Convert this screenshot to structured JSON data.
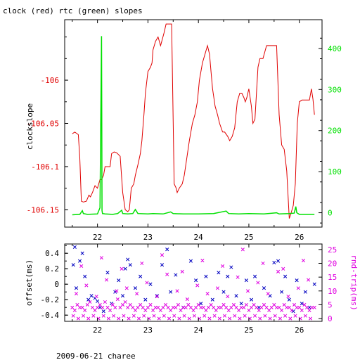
{
  "title": "clock (red) rtc (green) slopes",
  "footer": "2009-06-21 charee",
  "colors": {
    "frame": "#000000",
    "clock": "#e00000",
    "rtc": "#00e000",
    "offset": "#0000c0",
    "rtt": "#e000e0"
  },
  "chart_data": [
    {
      "type": "line",
      "title": "clock (red) rtc (green) slopes",
      "ylabel": "clockslope",
      "xlim": [
        21.35,
        26.45
      ],
      "ylim": [
        -106.17,
        -105.93
      ],
      "y2lim": [
        -35,
        470
      ],
      "x_ticks": [
        "22",
        "23",
        "24",
        "25",
        "26"
      ],
      "y_ticks": [
        "-106",
        "-106.05",
        "-106.1",
        "-106.15"
      ],
      "y2_ticks": [
        "0",
        "100",
        "200",
        "300",
        "400"
      ],
      "series": [
        {
          "axis": "left",
          "x": [
            21.5,
            21.55,
            21.62,
            21.65,
            21.68,
            21.72,
            21.78,
            21.83,
            21.86,
            21.9,
            21.95,
            22.0,
            22.05,
            22.08,
            22.12,
            22.15,
            22.2,
            22.25,
            22.28,
            22.33,
            22.38,
            22.45,
            22.5,
            22.55,
            22.6,
            22.63,
            22.67,
            22.72,
            22.75,
            22.8,
            22.85,
            22.88,
            22.92,
            22.95,
            23.0,
            23.05,
            23.08,
            23.1,
            23.15,
            23.2,
            23.25,
            23.32,
            23.36,
            23.42,
            23.47,
            23.52,
            23.56,
            23.58,
            23.62,
            23.68,
            23.72,
            23.77,
            23.82,
            23.88,
            23.93,
            23.98,
            24.02,
            24.08,
            24.13,
            24.18,
            24.22,
            24.25,
            24.28,
            24.33,
            24.38,
            24.42,
            24.48,
            24.52,
            24.58,
            24.62,
            24.67,
            24.72,
            24.77,
            24.82,
            24.86,
            24.9,
            24.93,
            24.96,
            25.0,
            25.05,
            25.08,
            25.12,
            25.18,
            25.22,
            25.28,
            25.35,
            25.42,
            25.48,
            25.52,
            25.55,
            25.6,
            25.65,
            25.7,
            25.75,
            25.8,
            25.83,
            25.88,
            25.92,
            25.96,
            26.0,
            26.05,
            26.1,
            26.15,
            26.2,
            26.24,
            26.27,
            26.3
          ],
          "y": [
            -106.062,
            -106.06,
            -106.063,
            -106.09,
            -106.14,
            -106.141,
            -106.14,
            -106.133,
            -106.135,
            -106.13,
            -106.122,
            -106.125,
            -106.115,
            -106.115,
            -106.11,
            -106.1,
            -106.1,
            -106.1,
            -106.085,
            -106.083,
            -106.084,
            -106.088,
            -106.13,
            -106.15,
            -106.152,
            -106.15,
            -106.125,
            -106.12,
            -106.11,
            -106.098,
            -106.085,
            -106.07,
            -106.04,
            -106.015,
            -105.99,
            -105.985,
            -105.98,
            -105.965,
            -105.955,
            -105.95,
            -105.96,
            -105.945,
            -105.935,
            -105.935,
            -105.935,
            -106.12,
            -106.125,
            -106.13,
            -106.125,
            -106.12,
            -106.11,
            -106.09,
            -106.07,
            -106.05,
            -106.04,
            -106.025,
            -106.0,
            -105.98,
            -105.97,
            -105.96,
            -105.97,
            -105.99,
            -106.01,
            -106.03,
            -106.04,
            -106.05,
            -106.06,
            -106.06,
            -106.065,
            -106.07,
            -106.065,
            -106.055,
            -106.025,
            -106.015,
            -106.015,
            -106.02,
            -106.025,
            -106.02,
            -106.01,
            -106.03,
            -106.05,
            -106.045,
            -105.985,
            -105.975,
            -105.975,
            -105.96,
            -105.96,
            -105.96,
            -105.96,
            -105.96,
            -106.04,
            -106.075,
            -106.08,
            -106.105,
            -106.16,
            -106.155,
            -106.145,
            -106.12,
            -106.05,
            -106.025,
            -106.023,
            -106.023,
            -106.023,
            -106.023,
            -106.01,
            -106.022,
            -106.04
          ],
          "color": "#e00000"
        },
        {
          "axis": "right",
          "x": [
            21.5,
            21.65,
            21.7,
            21.72,
            21.8,
            22.0,
            22.05,
            22.08,
            22.09,
            22.1,
            22.15,
            22.3,
            22.4,
            22.48,
            22.5,
            22.6,
            22.7,
            22.75,
            22.8,
            23.0,
            23.1,
            23.3,
            23.45,
            23.5,
            23.7,
            24.0,
            24.3,
            24.55,
            24.6,
            24.8,
            25.0,
            25.3,
            25.55,
            25.6,
            25.8,
            25.9,
            25.93,
            25.95,
            26.0,
            26.1,
            26.3
          ],
          "y": [
            -5,
            -4,
            5,
            -2,
            -4,
            -3,
            12,
            430,
            5,
            -2,
            -3,
            -4,
            -2,
            6,
            -2,
            -3,
            -2,
            8,
            -2,
            -3,
            -2,
            -3,
            2,
            -2,
            -3,
            -3,
            -2,
            4,
            -2,
            -3,
            -2,
            -3,
            0,
            -3,
            -2,
            -1,
            15,
            0,
            -4,
            -4,
            -4
          ],
          "color": "#00e000"
        }
      ]
    },
    {
      "type": "scatter",
      "ylabel": "offset(ms)",
      "y2label": "rnd-trip(ms)",
      "xlim": [
        21.35,
        26.45
      ],
      "ylim": [
        -0.48,
        0.52
      ],
      "y2lim": [
        -1,
        27
      ],
      "x_ticks": [
        "22",
        "23",
        "24",
        "25",
        "26"
      ],
      "y_ticks": [
        "0.4",
        "0.2",
        "0",
        "-0.2",
        "-0.4"
      ],
      "y2_ticks": [
        "25",
        "20",
        "15",
        "10",
        "5",
        "0"
      ],
      "series": [
        {
          "axis": "left",
          "marker": "x",
          "color": "#0000c0",
          "x": [
            21.52,
            21.55,
            21.58,
            21.65,
            21.7,
            21.75,
            21.82,
            21.88,
            21.95,
            22.0,
            22.05,
            22.12,
            22.2,
            22.28,
            22.35,
            22.42,
            22.5,
            22.55,
            22.6,
            22.65,
            22.75,
            22.85,
            22.95,
            23.05,
            23.18,
            23.28,
            23.38,
            23.45,
            23.55,
            23.7,
            23.85,
            23.95,
            24.05,
            24.15,
            24.28,
            24.4,
            24.5,
            24.58,
            24.65,
            24.75,
            24.85,
            24.95,
            25.05,
            25.12,
            25.2,
            25.3,
            25.42,
            25.5,
            25.58,
            25.65,
            25.72,
            25.8,
            25.88,
            25.95,
            26.05,
            26.12,
            26.2,
            26.3
          ],
          "y": [
            0.25,
            0.48,
            -0.05,
            0.3,
            0.4,
            0.1,
            -0.2,
            -0.15,
            -0.18,
            -0.22,
            -0.3,
            -0.35,
            0.15,
            -0.25,
            -0.1,
            0.05,
            -0.15,
            0.2,
            0.32,
            0.25,
            -0.05,
            0.1,
            -0.2,
            0.0,
            -0.15,
            0.25,
            0.45,
            -0.1,
            0.12,
            -0.3,
            0.3,
            0.05,
            -0.25,
            0.1,
            -0.2,
            0.15,
            -0.1,
            0.1,
            0.22,
            -0.15,
            -0.25,
            0.05,
            -0.2,
            0.1,
            -0.3,
            -0.05,
            -0.15,
            0.28,
            0.3,
            -0.1,
            0.1,
            -0.2,
            -0.35,
            0.05,
            -0.25,
            -0.1,
            -0.3,
            0.0
          ]
        },
        {
          "axis": "right",
          "marker": "x",
          "color": "#e000e0",
          "x": [
            21.5,
            21.55,
            21.6,
            21.65,
            21.7,
            21.75,
            21.8,
            21.85,
            21.9,
            21.95,
            22.0,
            22.05,
            22.1,
            22.15,
            22.2,
            22.25,
            22.3,
            22.35,
            22.4,
            22.45,
            22.5,
            22.55,
            22.6,
            22.65,
            22.7,
            22.75,
            22.8,
            22.85,
            22.9,
            22.95,
            23.0,
            23.05,
            23.1,
            23.15,
            23.2,
            23.25,
            23.3,
            23.35,
            23.4,
            23.45,
            23.5,
            23.55,
            23.6,
            23.65,
            23.7,
            23.75,
            23.8,
            23.85,
            23.9,
            23.95,
            24.0,
            24.05,
            24.1,
            24.15,
            24.2,
            24.25,
            24.3,
            24.35,
            24.4,
            24.45,
            24.5,
            24.55,
            24.6,
            24.65,
            24.7,
            24.75,
            24.8,
            24.85,
            24.9,
            24.95,
            25.0,
            25.05,
            25.1,
            25.15,
            25.2,
            25.25,
            25.3,
            25.35,
            25.4,
            25.45,
            25.5,
            25.55,
            25.6,
            25.65,
            25.7,
            25.75,
            25.8,
            25.85,
            25.9,
            25.95,
            26.0,
            26.05,
            26.1,
            26.15,
            26.2,
            26.25,
            26.3,
            21.52,
            21.62,
            21.72,
            21.82,
            21.92,
            22.02,
            22.12,
            22.22,
            22.32,
            22.42,
            22.52,
            22.62,
            22.72,
            22.82,
            22.92,
            23.02,
            23.12,
            23.22,
            23.32,
            23.42,
            23.52,
            23.62,
            23.72,
            23.82,
            23.92,
            24.02,
            24.12,
            24.22,
            24.32,
            24.42,
            24.52,
            24.62,
            24.72,
            24.82,
            24.92,
            25.02,
            25.12,
            25.22,
            25.32,
            25.42,
            25.52,
            25.62,
            25.72,
            25.82,
            25.92,
            26.02,
            26.12,
            26.22,
            21.58,
            21.78,
            21.98,
            22.18,
            22.38,
            22.58,
            22.78,
            22.98,
            23.18,
            23.38,
            23.58,
            23.78,
            23.98,
            24.18,
            24.38,
            24.58,
            24.78,
            24.98,
            25.18,
            25.38,
            25.58,
            25.78,
            25.98,
            26.18,
            21.68,
            22.08,
            22.48,
            22.88,
            23.28,
            23.68,
            24.08,
            24.48,
            24.88,
            25.28,
            25.68,
            26.08
          ],
          "y": [
            4,
            3,
            5,
            4,
            4,
            3,
            5,
            6,
            4,
            3,
            4,
            5,
            4,
            6,
            4,
            3,
            5,
            4,
            7,
            4,
            5,
            6,
            4,
            5,
            4,
            3,
            4,
            5,
            4,
            3,
            4,
            5,
            3,
            4,
            4,
            3,
            4,
            5,
            4,
            3,
            4,
            4,
            5,
            3,
            4,
            4,
            5,
            4,
            3,
            4,
            5,
            4,
            4,
            3,
            4,
            5,
            4,
            3,
            4,
            4,
            5,
            4,
            3,
            4,
            5,
            4,
            3,
            4,
            4,
            5,
            3,
            4,
            5,
            4,
            3,
            4,
            5,
            4,
            3,
            4,
            5,
            4,
            4,
            3,
            5,
            4,
            4,
            3,
            5,
            4,
            4,
            3,
            5,
            4,
            3,
            4,
            4,
            1,
            0,
            1,
            0,
            1,
            0,
            1,
            0,
            1,
            0,
            1,
            0,
            1,
            0,
            1,
            0,
            1,
            0,
            1,
            0,
            1,
            0,
            1,
            0,
            1,
            0,
            1,
            0,
            1,
            0,
            1,
            0,
            1,
            0,
            1,
            0,
            1,
            0,
            1,
            0,
            1,
            0,
            1,
            0,
            1,
            0,
            1,
            0,
            9,
            12,
            8,
            14,
            10,
            11,
            9,
            13,
            8,
            16,
            10,
            7,
            12,
            9,
            11,
            8,
            15,
            10,
            13,
            9,
            17,
            8,
            11,
            14,
            19,
            22,
            18,
            20,
            23,
            17,
            21,
            19,
            25,
            20,
            18,
            21
          ]
        }
      ]
    }
  ]
}
